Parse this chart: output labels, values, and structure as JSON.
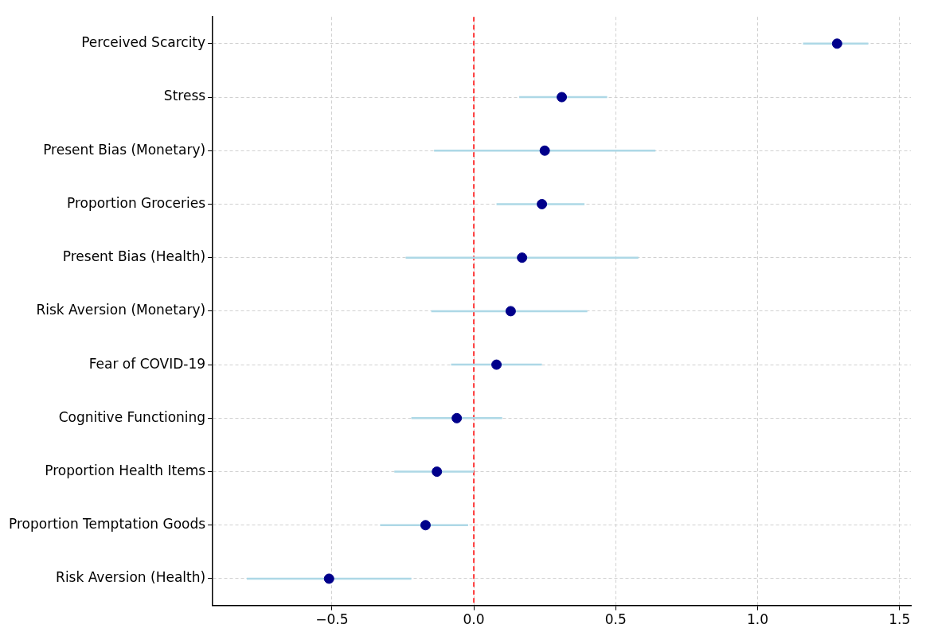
{
  "chart_data": {
    "type": "scatter",
    "orientation": "horizontal",
    "categories": [
      "Perceived Scarcity",
      "Stress",
      "Present Bias (Monetary)",
      "Proportion Groceries",
      "Present Bias (Health)",
      "Risk Aversion (Monetary)",
      "Fear of COVID-19",
      "Cognitive Functioning",
      "Proportion Health Items",
      "Proportion Temptation Goods",
      "Risk Aversion (Health)"
    ],
    "values": [
      1.28,
      0.31,
      0.25,
      0.24,
      0.17,
      0.13,
      0.08,
      -0.06,
      -0.13,
      -0.17,
      -0.51
    ],
    "errors": [
      [
        1.16,
        1.39
      ],
      [
        0.16,
        0.47
      ],
      [
        -0.14,
        0.64
      ],
      [
        0.08,
        0.39
      ],
      [
        -0.24,
        0.58
      ],
      [
        -0.15,
        0.4
      ],
      [
        -0.08,
        0.24
      ],
      [
        -0.22,
        0.1
      ],
      [
        -0.28,
        0.0
      ],
      [
        -0.33,
        -0.02
      ],
      [
        -0.8,
        -0.22
      ]
    ],
    "color": "#00008b",
    "marker": "circle",
    "grid": true,
    "xlim": [
      -0.92,
      1.54
    ],
    "xticks": [
      {
        "value": -0.5,
        "label": "−0.5"
      },
      {
        "value": 0,
        "label": "0.0"
      },
      0.5,
      {
        "value": 1,
        "label": "1.0"
      },
      1.5
    ],
    "ref_lines": [
      {
        "axis": "x",
        "value": 0,
        "color": "#ff0000",
        "line_style": "dashed"
      }
    ]
  }
}
